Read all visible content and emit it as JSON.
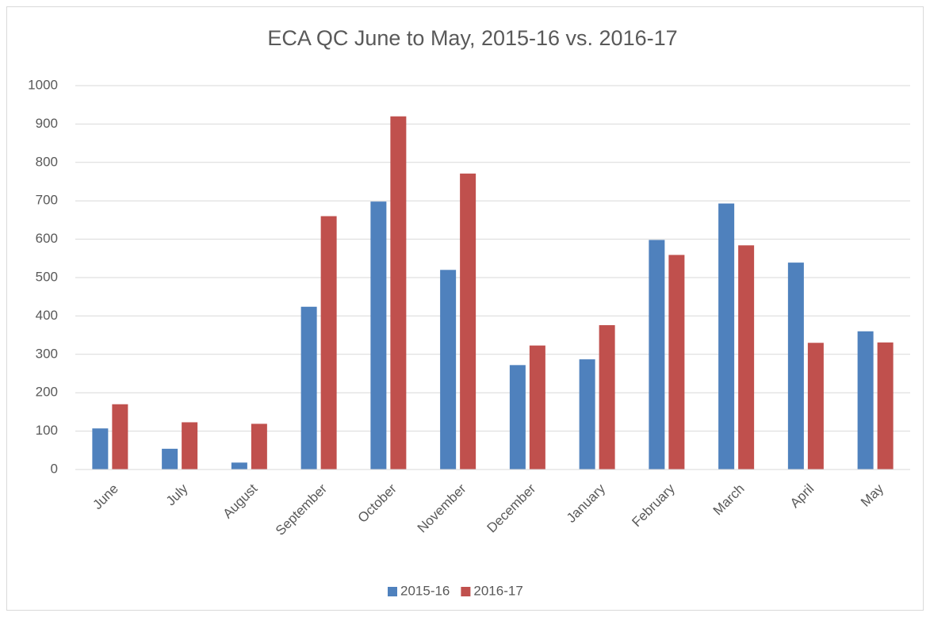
{
  "chart_data": {
    "type": "bar",
    "title": "ECA QC June to May, 2015-16 vs. 2016-17",
    "categories": [
      "June",
      "July",
      "August",
      "September",
      "October",
      "November",
      "December",
      "January",
      "February",
      "March",
      "April",
      "May"
    ],
    "series": [
      {
        "name": "2015-16",
        "color": "#4f81bd",
        "values": [
          107,
          54,
          18,
          424,
          698,
          520,
          272,
          287,
          598,
          693,
          539,
          360
        ]
      },
      {
        "name": "2016-17",
        "color": "#c0504d",
        "values": [
          170,
          123,
          119,
          660,
          920,
          771,
          323,
          376,
          559,
          584,
          330,
          331
        ]
      }
    ],
    "ylim": [
      0,
      1000
    ],
    "yticks": [
      0,
      100,
      200,
      300,
      400,
      500,
      600,
      700,
      800,
      900,
      1000
    ],
    "grid": true,
    "legend": "bottom"
  }
}
